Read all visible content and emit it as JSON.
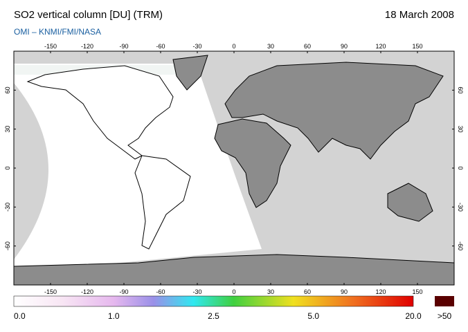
{
  "header": {
    "title": "SO2 vertical column [DU] (TRM)",
    "date": "18 March 2008",
    "source": "OMI – KNMI/FMI/NASA"
  },
  "map": {
    "lon_range": [
      -180,
      180
    ],
    "lat_range": [
      -90,
      90
    ],
    "lon_ticks": [
      -150,
      -120,
      -90,
      -60,
      -30,
      0,
      30,
      60,
      90,
      120,
      150
    ],
    "lat_ticks": [
      60,
      30,
      0,
      -30,
      -60
    ]
  },
  "colorbar": {
    "labels": [
      "0.0",
      "1.0",
      "2.5",
      "5.0",
      "20.0"
    ],
    "overflow_label": ">50"
  }
}
